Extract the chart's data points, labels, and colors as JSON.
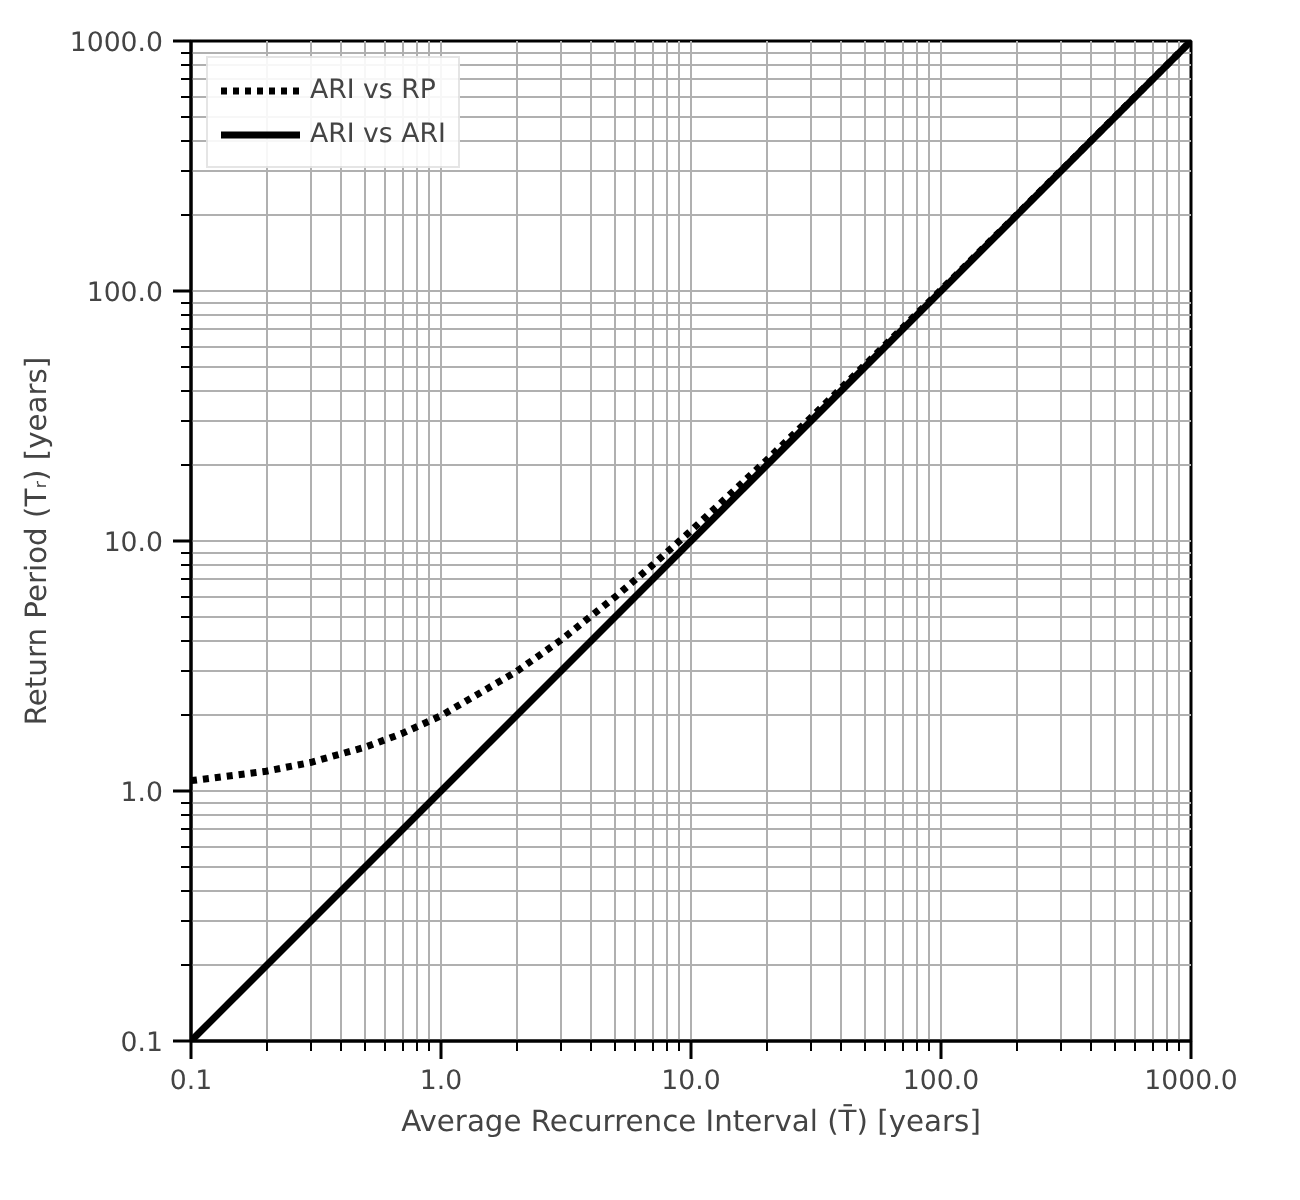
{
  "chart_data": {
    "type": "line",
    "xlabel": "Average Recurrence Interval (T̄) [years]",
    "ylabel": "Return Period (Tᵣ) [years]",
    "log": "xy",
    "grid": true,
    "legend": "top left",
    "xlim": [
      0.1,
      1000
    ],
    "ylim": [
      0.1,
      1000
    ],
    "xticks": [
      {
        "value": 0.1,
        "label": "0.1"
      },
      {
        "value": 1,
        "label": "1.0"
      },
      {
        "value": 10,
        "label": "10.0"
      },
      {
        "value": 100,
        "label": "100.0"
      },
      {
        "value": 1000,
        "label": "1000.0"
      }
    ],
    "yticks": [
      {
        "value": 0.1,
        "label": "0.1"
      },
      {
        "value": 1,
        "label": "1.0"
      },
      {
        "value": 10,
        "label": "10.0"
      },
      {
        "value": 100,
        "label": "100.0"
      },
      {
        "value": 1000,
        "label": "1000.0"
      }
    ],
    "series": [
      {
        "name": "ARI vs RP",
        "color": "#000000",
        "line_style": "dotted",
        "x": [
          0.1,
          0.2,
          0.3,
          0.5,
          0.7,
          1,
          2,
          3,
          5,
          7,
          10,
          20,
          30,
          50,
          100,
          200,
          500,
          999
        ],
        "values": [
          1.1,
          1.2,
          1.3,
          1.5,
          1.7,
          2,
          3,
          4,
          6,
          8,
          11,
          21,
          31,
          51,
          101,
          201,
          501,
          1000
        ]
      },
      {
        "name": "ARI vs ARI",
        "color": "#000000",
        "line_style": "solid",
        "x": [
          0.1,
          1000
        ],
        "values": [
          0.1,
          1000
        ]
      }
    ]
  }
}
